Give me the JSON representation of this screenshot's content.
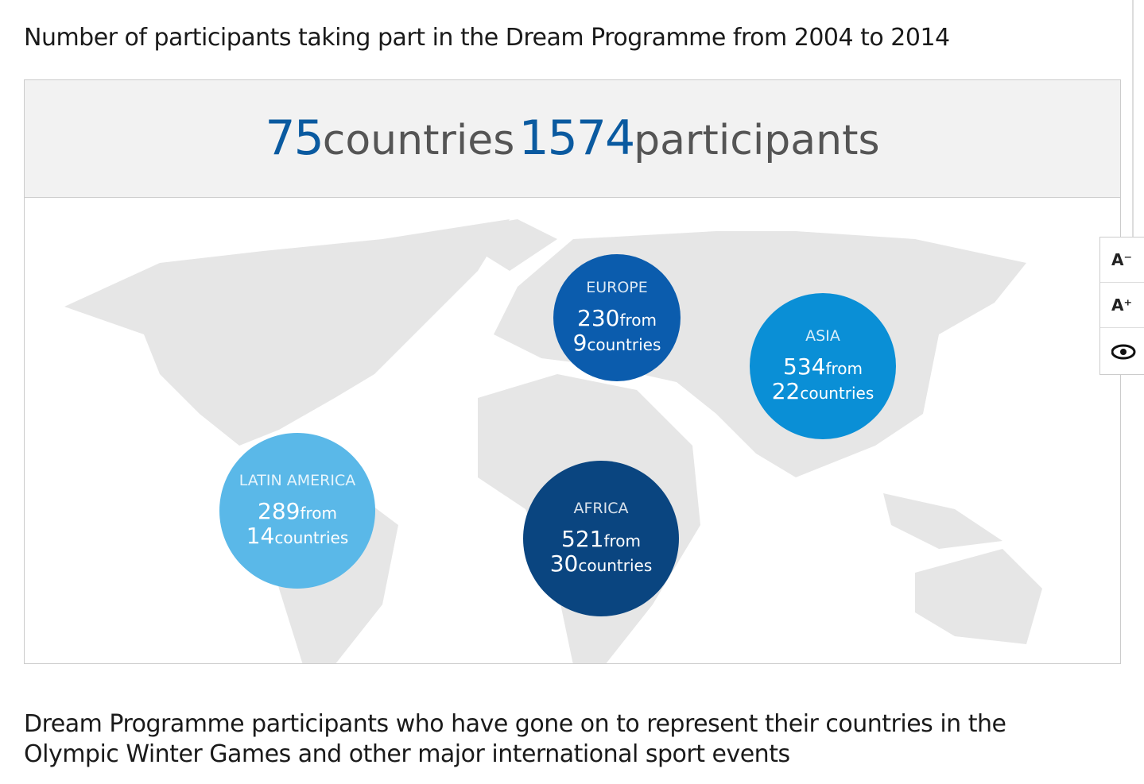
{
  "heading": "Number of participants taking part in the Dream Programme from 2004 to 2014",
  "summary": {
    "countries_number": 75,
    "countries_label": "countries",
    "participants_number": 1574,
    "participants_label": "participants"
  },
  "regions": [
    {
      "name": "EUROPE",
      "participants": 230,
      "from_label": "from",
      "countries": 9,
      "countries_label": "countries"
    },
    {
      "name": "ASIA",
      "participants": 534,
      "from_label": "from",
      "countries": 22,
      "countries_label": "countries"
    },
    {
      "name": "LATIN AMERICA",
      "participants": 289,
      "from_label": "from",
      "countries": 14,
      "countries_label": "countries"
    },
    {
      "name": "AFRICA",
      "participants": 521,
      "from_label": "from",
      "countries": 30,
      "countries_label": "countries"
    }
  ],
  "toolbar": {
    "decrease": "A⁻",
    "increase": "A⁺"
  },
  "second_heading": "Dream Programme participants who have gone on to represent their countries in the Olympic Winter Games and other major international sport events"
}
